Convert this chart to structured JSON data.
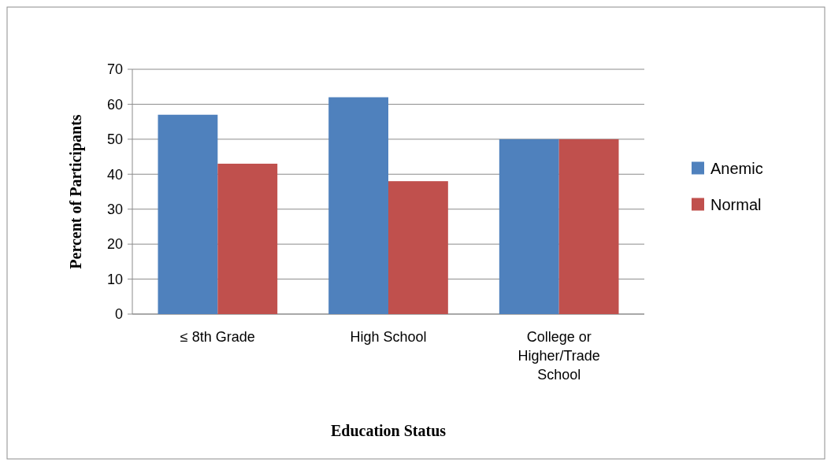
{
  "chart_data": {
    "type": "bar",
    "xlabel": "Education Status",
    "ylabel": "Percent of Participants",
    "categories": [
      "≤ 8th Grade",
      "High School",
      "College or Higher/Trade School"
    ],
    "series": [
      {
        "name": "Anemic",
        "color": "#4f81bd",
        "values": [
          57,
          62,
          50
        ]
      },
      {
        "name": "Normal",
        "color": "#c0504d",
        "values": [
          43,
          38,
          50
        ]
      }
    ],
    "ylim": [
      0,
      70
    ],
    "yticks": [
      0,
      10,
      20,
      30,
      40,
      50,
      60,
      70
    ],
    "grid": "y",
    "legend": "right"
  }
}
